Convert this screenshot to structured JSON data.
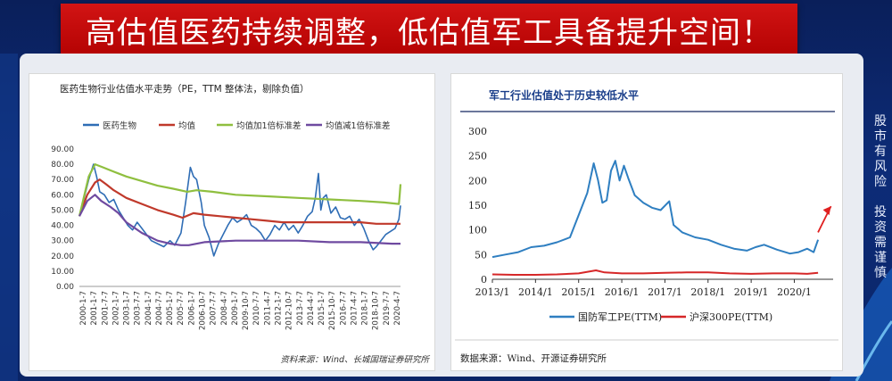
{
  "banner": {
    "title": "高估值医药持续调整，低估值军工具备提升空间！"
  },
  "side_note": {
    "chars": [
      "股",
      "市",
      "有",
      "风",
      "险",
      "",
      "投",
      "资",
      "需",
      "谨",
      "慎"
    ]
  },
  "chart_data": [
    {
      "type": "line",
      "title": "医药生物行业估值水平走势（PE，TTM 整体法，剔除负值）",
      "source": "资料来源：Wind、长城国瑞证券研究所",
      "ylim": [
        0,
        90
      ],
      "yticks": [
        "0.00",
        "10.00",
        "20.00",
        "30.00",
        "40.00",
        "50.00",
        "60.00",
        "70.00",
        "80.00",
        "90.00"
      ],
      "xticks": [
        "2000-1-7",
        "2001-1-7",
        "2001-7-7",
        "2002-1-7",
        "2003-1-7",
        "2003-7-7",
        "2004-1-7",
        "2004-7-7",
        "2005-1-7",
        "2005-7-7",
        "2006-1-7",
        "2006-10-7",
        "2007-7-7",
        "2008-4-7",
        "2009-1-7",
        "2009-10-7",
        "2010-7-7",
        "2011-4-7",
        "2012-1-7",
        "2012-10-7",
        "2013-7-7",
        "2014-4-7",
        "2015-1-7",
        "2015-10-7",
        "2016-7-7",
        "2017-4-7",
        "2018-1-7",
        "2018-10-7",
        "2019-7-7",
        "2020-4-7"
      ],
      "legend_position": "top",
      "series": [
        {
          "name": "医药生物",
          "color": "#2f6db5",
          "x": [
            2000.0,
            2000.3,
            2000.6,
            2000.9,
            2001.1,
            2001.3,
            2001.6,
            2001.9,
            2002.2,
            2002.5,
            2002.8,
            2003.1,
            2003.4,
            2003.7,
            2004.0,
            2004.3,
            2004.6,
            2005.0,
            2005.4,
            2005.8,
            2006.1,
            2006.5,
            2006.8,
            2007.1,
            2007.3,
            2007.5,
            2007.8,
            2008.0,
            2008.3,
            2008.6,
            2008.9,
            2009.2,
            2009.5,
            2009.8,
            2010.1,
            2010.4,
            2010.7,
            2011.0,
            2011.3,
            2011.6,
            2011.9,
            2012.2,
            2012.5,
            2012.8,
            2013.1,
            2013.4,
            2013.7,
            2014.0,
            2014.3,
            2014.6,
            2014.9,
            2015.1,
            2015.3,
            2015.45,
            2015.6,
            2015.8,
            2016.1,
            2016.4,
            2016.7,
            2017.0,
            2017.3,
            2017.6,
            2017.9,
            2018.2,
            2018.5,
            2018.8,
            2019.0,
            2019.3,
            2019.6,
            2019.9,
            2020.2,
            2020.45,
            2020.55
          ],
          "y": [
            46,
            58,
            70,
            80,
            72,
            62,
            60,
            55,
            57,
            50,
            45,
            40,
            37,
            42,
            38,
            34,
            30,
            28,
            26,
            30,
            27,
            35,
            55,
            78,
            72,
            70,
            55,
            40,
            32,
            20,
            28,
            34,
            40,
            45,
            42,
            44,
            47,
            40,
            38,
            35,
            30,
            34,
            40,
            37,
            42,
            37,
            40,
            35,
            40,
            46,
            49,
            58,
            74,
            50,
            58,
            60,
            48,
            52,
            45,
            44,
            46,
            40,
            44,
            38,
            30,
            24,
            26,
            30,
            34,
            36,
            38,
            44,
            53
          ]
        },
        {
          "name": "均值",
          "color": "#c0392b",
          "x": [
            2000.0,
            2000.5,
            2001.0,
            2001.3,
            2001.7,
            2002.2,
            2003.0,
            2004.0,
            2005.0,
            2006.0,
            2006.6,
            2007.3,
            2008.0,
            2009.0,
            2010.0,
            2011.0,
            2012.0,
            2013.0,
            2014.0,
            2015.0,
            2016.0,
            2017.0,
            2018.0,
            2019.0,
            2020.0,
            2020.55
          ],
          "y": [
            46,
            60,
            68,
            70,
            67,
            63,
            58,
            54,
            50,
            47,
            45,
            48,
            47,
            46,
            45,
            44,
            43,
            42,
            42,
            42,
            42,
            42,
            42,
            41,
            41,
            41
          ]
        },
        {
          "name": "均值加1倍标准差",
          "color": "#8fbf3f",
          "x": [
            2000.0,
            2000.6,
            2001.0,
            2001.5,
            2002.0,
            2003.0,
            2004.0,
            2005.0,
            2006.0,
            2006.9,
            2007.5,
            2008.5,
            2010.0,
            2012.0,
            2014.0,
            2016.0,
            2018.0,
            2019.5,
            2020.45,
            2020.5,
            2020.55
          ],
          "y": [
            46,
            72,
            80,
            78,
            76,
            72,
            69,
            66,
            64,
            62,
            63,
            62,
            60,
            59,
            58,
            57,
            56,
            55,
            54,
            60,
            67
          ]
        },
        {
          "name": "均值减1倍标准差",
          "color": "#6f4aa0",
          "x": [
            2000.0,
            2000.5,
            2001.0,
            2001.4,
            2002.0,
            2002.5,
            2003.0,
            2004.0,
            2005.0,
            2005.8,
            2006.5,
            2007.0,
            2008.0,
            2010.0,
            2012.0,
            2014.0,
            2016.0,
            2018.0,
            2020.0,
            2020.55
          ],
          "y": [
            46,
            56,
            60,
            56,
            52,
            48,
            42,
            35,
            30,
            28,
            27,
            27,
            29,
            30,
            30,
            30,
            29,
            29,
            28,
            28
          ]
        }
      ]
    },
    {
      "type": "line",
      "title": "军工行业估值处于历史较低水平",
      "source": "数据来源：Wind、开源证券研究所",
      "ylim": [
        0,
        300
      ],
      "yticks": [
        "0",
        "50",
        "100",
        "150",
        "200",
        "250",
        "300"
      ],
      "xticks": [
        "2013/1",
        "2014/1",
        "2015/1",
        "2016/1",
        "2017/1",
        "2018/1",
        "2019/1",
        "2020/1"
      ],
      "legend_position": "bottom",
      "series": [
        {
          "name": "国防军工PE(TTM)",
          "color": "#2f7fc1",
          "x": [
            2013.0,
            2013.3,
            2013.6,
            2013.9,
            2014.2,
            2014.5,
            2014.8,
            2015.0,
            2015.2,
            2015.35,
            2015.45,
            2015.55,
            2015.65,
            2015.75,
            2015.85,
            2015.95,
            2016.05,
            2016.15,
            2016.3,
            2016.5,
            2016.7,
            2016.9,
            2017.1,
            2017.2,
            2017.4,
            2017.7,
            2018.0,
            2018.3,
            2018.6,
            2018.9,
            2019.1,
            2019.3,
            2019.6,
            2019.9,
            2020.1,
            2020.3,
            2020.45,
            2020.55
          ],
          "y": [
            45,
            50,
            55,
            65,
            68,
            75,
            85,
            130,
            175,
            235,
            200,
            155,
            160,
            220,
            240,
            200,
            230,
            205,
            170,
            155,
            145,
            140,
            158,
            110,
            95,
            85,
            80,
            70,
            62,
            58,
            65,
            70,
            60,
            52,
            55,
            62,
            55,
            80
          ]
        },
        {
          "name": "沪深300PE(TTM)",
          "color": "#d62728",
          "x": [
            2013.0,
            2013.5,
            2014.0,
            2014.5,
            2015.0,
            2015.4,
            2015.6,
            2016.0,
            2016.5,
            2017.0,
            2017.5,
            2018.0,
            2018.5,
            2019.0,
            2019.5,
            2020.0,
            2020.3,
            2020.55
          ],
          "y": [
            10,
            9,
            9,
            10,
            12,
            18,
            14,
            12,
            12,
            13,
            14,
            14,
            12,
            11,
            12,
            12,
            11,
            13
          ]
        }
      ],
      "annotation": "red-arrow-up"
    }
  ]
}
